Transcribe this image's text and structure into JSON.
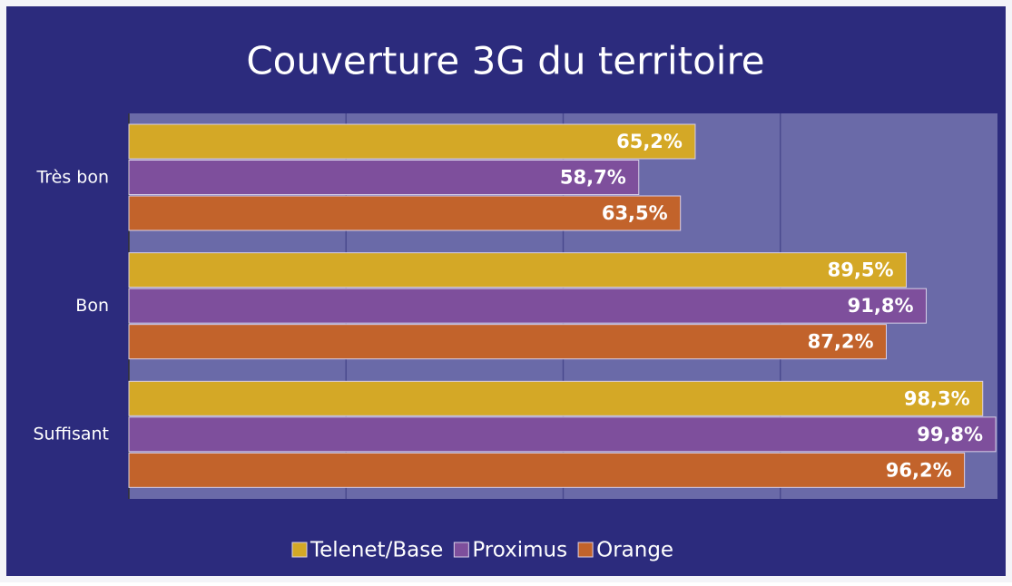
{
  "chart_data": {
    "type": "hbar",
    "title": "Couverture 3G du territoire",
    "categories": [
      "Très bon",
      "Bon",
      "Suffisant"
    ],
    "series": [
      {
        "name": "Telenet/Base",
        "color": "#d4a826",
        "values": [
          65.2,
          89.5,
          98.3
        ],
        "value_labels": [
          "65,2%",
          "89,5%",
          "98,3%"
        ]
      },
      {
        "name": "Proximus",
        "color": "#7e4f9c",
        "values": [
          58.7,
          91.8,
          99.8
        ],
        "value_labels": [
          "58,7%",
          "91,8%",
          "99,8%"
        ]
      },
      {
        "name": "Orange",
        "color": "#c2632b",
        "values": [
          63.5,
          87.2,
          96.2
        ],
        "value_labels": [
          "63,5%",
          "87,2%",
          "96,2%"
        ]
      }
    ],
    "xlim": [
      0,
      100
    ],
    "grid_lines": [
      25,
      50,
      75
    ],
    "legend": "bottom"
  }
}
